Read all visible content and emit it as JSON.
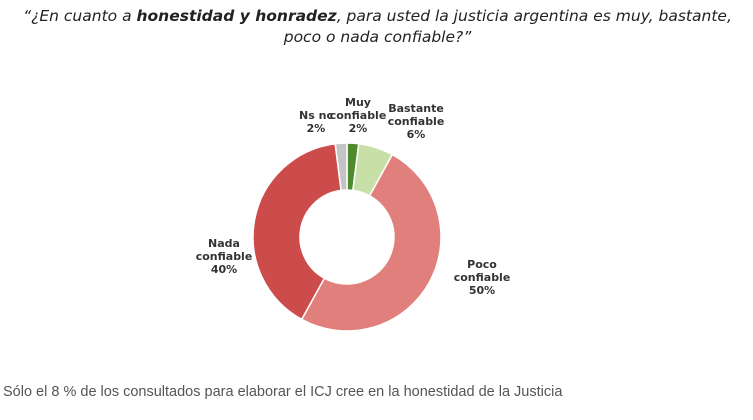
{
  "chart_data": {
    "type": "pie",
    "title": {
      "prefix": "“¿En cuanto a ",
      "emphasis": "honestidad y honradez",
      "suffix": ", para usted la justicia argentina es muy, bastante, poco o nada confiable?”"
    },
    "series": [
      {
        "values": [
          2,
          6,
          50,
          40,
          2
        ],
        "categories": [
          {
            "lines": [
              "Muy",
              "confiable"
            ],
            "value_label": "2%",
            "color": "#4f8a2e"
          },
          {
            "lines": [
              "Bastante",
              "confiable"
            ],
            "value_label": "6%",
            "color": "#c8e0a8"
          },
          {
            "lines": [
              "Poco",
              "confiable"
            ],
            "value_label": "50%",
            "color": "#e07f7c"
          },
          {
            "lines": [
              "Nada",
              "confiable"
            ],
            "value_label": "40%",
            "color": "#cc4c4c"
          },
          {
            "lines": [
              "Ns nc"
            ],
            "value_label": "2%",
            "color": "#c4c4c4"
          }
        ]
      }
    ],
    "donut": true
  },
  "caption": "Sólo el 8 % de los consultados para elaborar el ICJ cree en la honestidad de la Justicia"
}
